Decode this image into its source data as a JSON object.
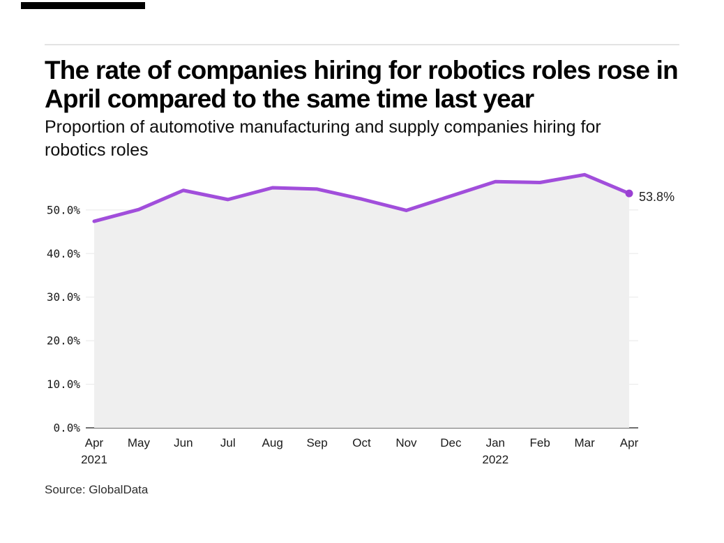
{
  "header": {
    "title_lines": [
      "The rate of companies hiring for robotics roles rose in",
      "April compared to the same time last year"
    ],
    "subtitle_lines": [
      "Proportion of automotive manufacturing and supply companies hiring for",
      "robotics roles"
    ]
  },
  "source": {
    "text": "Source: GlobalData"
  },
  "colors": {
    "line": "#a14edb",
    "dot": "#9a40d2",
    "area_fill": "#efefef",
    "grid": "#e8e8e8",
    "axis": "#6e6e6e",
    "brand_bar": "#000000"
  },
  "chart_data": {
    "type": "line",
    "title": "The rate of companies hiring for robotics roles rose in April compared to the same time last year",
    "subtitle": "Proportion of automotive manufacturing and supply companies hiring for robotics roles",
    "categories": [
      "Apr",
      "May",
      "Jun",
      "Jul",
      "Aug",
      "Sep",
      "Oct",
      "Nov",
      "Dec",
      "Jan",
      "Feb",
      "Mar",
      "Apr"
    ],
    "year_labels": [
      {
        "index": 0,
        "text": "2021"
      },
      {
        "index": 9,
        "text": "2022"
      }
    ],
    "values": [
      47.4,
      50.1,
      54.5,
      52.4,
      55.1,
      54.8,
      52.5,
      49.9,
      53.2,
      56.5,
      56.3,
      58.1,
      53.8
    ],
    "unit": "%",
    "ylim": [
      0,
      60
    ],
    "yticks": [
      {
        "value": 0,
        "label": "0.0%"
      },
      {
        "value": 10,
        "label": "10.0%"
      },
      {
        "value": 20,
        "label": "20.0%"
      },
      {
        "value": 30,
        "label": "30.0%"
      },
      {
        "value": 40,
        "label": "40.0%"
      },
      {
        "value": 50,
        "label": "50.0%"
      }
    ],
    "end_annotation": "53.8%",
    "area_filled": true,
    "grid": "horizontal",
    "legend": "none",
    "xlabel": "",
    "ylabel": ""
  }
}
